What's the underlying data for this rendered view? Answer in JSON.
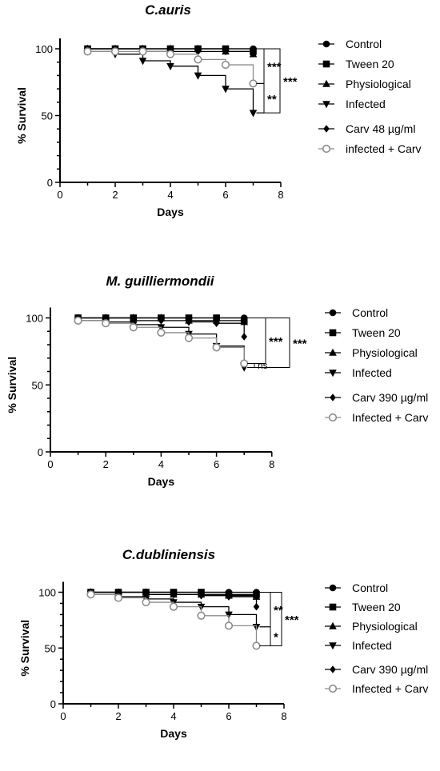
{
  "chart_data": [
    {
      "type": "line",
      "title": "C.auris",
      "xlabel": "Days",
      "ylabel": "% Survival",
      "xlim": [
        0,
        8
      ],
      "ylim": [
        0,
        100
      ],
      "x_ticks": [
        "0",
        "2",
        "4",
        "6",
        "8"
      ],
      "y_ticks": [
        "0",
        "50",
        "100"
      ],
      "x": [
        1,
        2,
        3,
        4,
        5,
        6,
        7
      ],
      "series": [
        {
          "name": "Control",
          "marker": "circle",
          "color": "#000000",
          "values": [
            100,
            100,
            100,
            100,
            100,
            100,
            100
          ]
        },
        {
          "name": "Tween 20",
          "marker": "square",
          "color": "#000000",
          "values": [
            100,
            100,
            100,
            100,
            100,
            100,
            98
          ]
        },
        {
          "name": "Physiological",
          "marker": "triangle-up",
          "color": "#000000",
          "values": [
            100,
            100,
            100,
            100,
            100,
            98,
            96
          ]
        },
        {
          "name": "Infected",
          "marker": "triangle-down",
          "color": "#000000",
          "values": [
            98,
            96,
            91,
            87,
            80,
            70,
            52
          ]
        },
        {
          "name": "Carv 48 µg/ml",
          "marker": "diamond",
          "color": "#000000",
          "values": [
            100,
            100,
            98,
            98,
            98,
            98,
            97
          ]
        },
        {
          "name": "infected + Carv",
          "marker": "open-circle",
          "color": "#8c8c8c",
          "values": [
            98,
            98,
            98,
            96,
            92,
            88,
            74
          ]
        }
      ],
      "significance": [
        {
          "label": "***",
          "from": "Control",
          "to": "infected + Carv",
          "level": 1
        },
        {
          "label": "**",
          "from": "infected + Carv",
          "to": "Infected",
          "level": 1
        },
        {
          "label": "***",
          "from": "Control",
          "to": "Infected",
          "level": 2
        }
      ]
    },
    {
      "type": "line",
      "title": "M. guilliermondii",
      "xlabel": "Days",
      "ylabel": "% Survival",
      "xlim": [
        0,
        8
      ],
      "ylim": [
        0,
        100
      ],
      "x_ticks": [
        "0",
        "2",
        "4",
        "6",
        "8"
      ],
      "y_ticks": [
        "0",
        "50",
        "100"
      ],
      "x": [
        1,
        2,
        3,
        4,
        5,
        6,
        7
      ],
      "series": [
        {
          "name": "Control",
          "marker": "circle",
          "color": "#000000",
          "values": [
            100,
            100,
            100,
            100,
            100,
            100,
            100
          ]
        },
        {
          "name": "Tween 20",
          "marker": "square",
          "color": "#000000",
          "values": [
            100,
            100,
            100,
            100,
            100,
            100,
            98
          ]
        },
        {
          "name": "Physiological",
          "marker": "triangle-up",
          "color": "#000000",
          "values": [
            100,
            100,
            100,
            100,
            98,
            98,
            97
          ]
        },
        {
          "name": "Infected",
          "marker": "triangle-down",
          "color": "#000000",
          "values": [
            98,
            97,
            95,
            93,
            88,
            79,
            63
          ]
        },
        {
          "name": "Carv 390 µg/ml",
          "marker": "diamond",
          "color": "#000000",
          "values": [
            100,
            100,
            98,
            98,
            97,
            96,
            86
          ]
        },
        {
          "name": "Infected + Carv",
          "marker": "open-circle",
          "color": "#8c8c8c",
          "values": [
            98,
            96,
            93,
            89,
            85,
            78,
            66
          ]
        }
      ],
      "significance": [
        {
          "label": "ns",
          "from": "Infected + Carv",
          "to": "Infected",
          "level": 1
        },
        {
          "label": "***",
          "from": "Control",
          "to": "Infected + Carv",
          "level": 2
        },
        {
          "label": "***",
          "from": "Control",
          "to": "Infected",
          "level": 3
        }
      ]
    },
    {
      "type": "line",
      "title": "C.dubliniensis",
      "xlabel": "Days",
      "ylabel": "% Survival",
      "xlim": [
        0,
        8
      ],
      "ylim": [
        0,
        100
      ],
      "x_ticks": [
        "0",
        "2",
        "4",
        "6",
        "8"
      ],
      "y_ticks": [
        "0",
        "50",
        "100"
      ],
      "x": [
        1,
        2,
        3,
        4,
        5,
        6,
        7
      ],
      "series": [
        {
          "name": "Control",
          "marker": "circle",
          "color": "#000000",
          "values": [
            100,
            100,
            100,
            100,
            100,
            100,
            100
          ]
        },
        {
          "name": "Tween 20",
          "marker": "square",
          "color": "#000000",
          "values": [
            100,
            100,
            100,
            100,
            100,
            98,
            98
          ]
        },
        {
          "name": "Physiological",
          "marker": "triangle-up",
          "color": "#000000",
          "values": [
            100,
            100,
            100,
            98,
            98,
            97,
            96
          ]
        },
        {
          "name": "Infected",
          "marker": "triangle-down",
          "color": "#000000",
          "values": [
            98,
            96,
            94,
            91,
            87,
            80,
            69
          ]
        },
        {
          "name": "Carv 390 µg/ml",
          "marker": "diamond",
          "color": "#000000",
          "values": [
            100,
            100,
            98,
            98,
            97,
            96,
            87
          ]
        },
        {
          "name": "Infected + Carv",
          "marker": "open-circle",
          "color": "#8c8c8c",
          "values": [
            98,
            95,
            91,
            87,
            79,
            70,
            52
          ]
        }
      ],
      "significance": [
        {
          "label": "**",
          "from": "Control",
          "to": "Infected",
          "level": 1
        },
        {
          "label": "*",
          "from": "Infected",
          "to": "Infected + Carv",
          "level": 1
        },
        {
          "label": "***",
          "from": "Control",
          "to": "Infected + Carv",
          "level": 2
        }
      ]
    }
  ]
}
